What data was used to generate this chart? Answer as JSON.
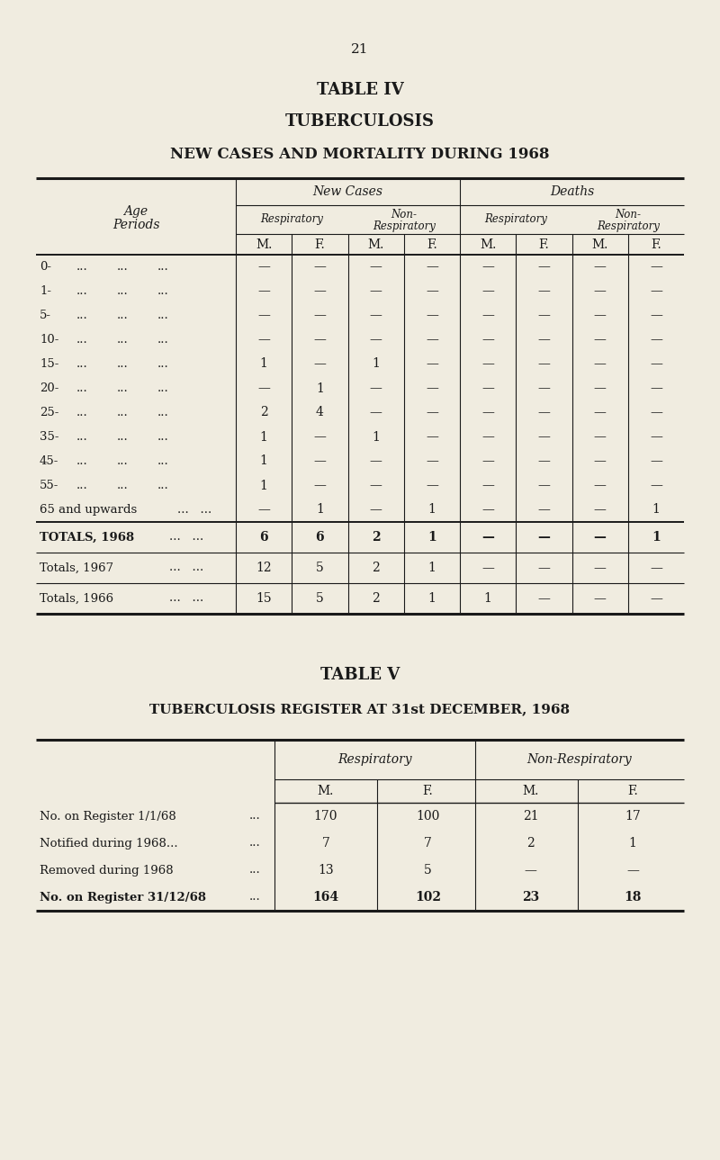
{
  "page_number": "21",
  "bg_color": "#f0ece0",
  "text_color": "#1a1a1a",
  "table4": {
    "title1": "TABLE IV",
    "title2": "TUBERCULOSIS",
    "title3": "NEW CASES AND MORTALITY DURING 1968",
    "age_rows": [
      [
        "0-",
        "—",
        "—",
        "—",
        "—",
        "—",
        "—",
        "—",
        "—"
      ],
      [
        "1-",
        "—",
        "—",
        "—",
        "—",
        "—",
        "—",
        "—",
        "—"
      ],
      [
        "5-",
        "—",
        "—",
        "—",
        "—",
        "—",
        "—",
        "—",
        "—"
      ],
      [
        "10-",
        "—",
        "—",
        "—",
        "—",
        "—",
        "—",
        "—",
        "—"
      ],
      [
        "15-",
        "1",
        "—",
        "1",
        "—",
        "—",
        "—",
        "—",
        "—"
      ],
      [
        "20-",
        "—",
        "1",
        "—",
        "—",
        "—",
        "—",
        "—",
        "—"
      ],
      [
        "25-",
        "2",
        "4",
        "—",
        "—",
        "—",
        "—",
        "—",
        "—"
      ],
      [
        "35-",
        "1",
        "—",
        "1",
        "—",
        "—",
        "—",
        "—",
        "—"
      ],
      [
        "45-",
        "1",
        "—",
        "—",
        "—",
        "—",
        "—",
        "—",
        "—"
      ],
      [
        "55-",
        "1",
        "—",
        "—",
        "—",
        "—",
        "—",
        "—",
        "—"
      ],
      [
        "65 and upwards",
        "—",
        "1",
        "—",
        "1",
        "—",
        "—",
        "—",
        "1"
      ]
    ],
    "totals_rows": [
      [
        "TOTALS, 1968",
        true,
        "6",
        "6",
        "2",
        "1",
        "—",
        "—",
        "—",
        "1"
      ],
      [
        "Totals, 1967",
        false,
        "12",
        "5",
        "2",
        "1",
        "—",
        "—",
        "—",
        "—"
      ],
      [
        "Totals, 1966",
        false,
        "15",
        "5",
        "2",
        "1",
        "1",
        "—",
        "—",
        "—"
      ]
    ]
  },
  "table5": {
    "title1": "TABLE V",
    "title2": "TUBERCULOSIS REGISTER AT 31st DECEMBER, 1968",
    "rows": [
      [
        "No. on Register 1/1/68",
        false,
        "170",
        "100",
        "21",
        "17"
      ],
      [
        "Notified during 1968...",
        false,
        "7",
        "7",
        "2",
        "1"
      ],
      [
        "Removed during 1968",
        false,
        "13",
        "5",
        "—",
        "—"
      ],
      [
        "No. on Register 31/12/68",
        true,
        "164",
        "102",
        "23",
        "18"
      ]
    ]
  }
}
